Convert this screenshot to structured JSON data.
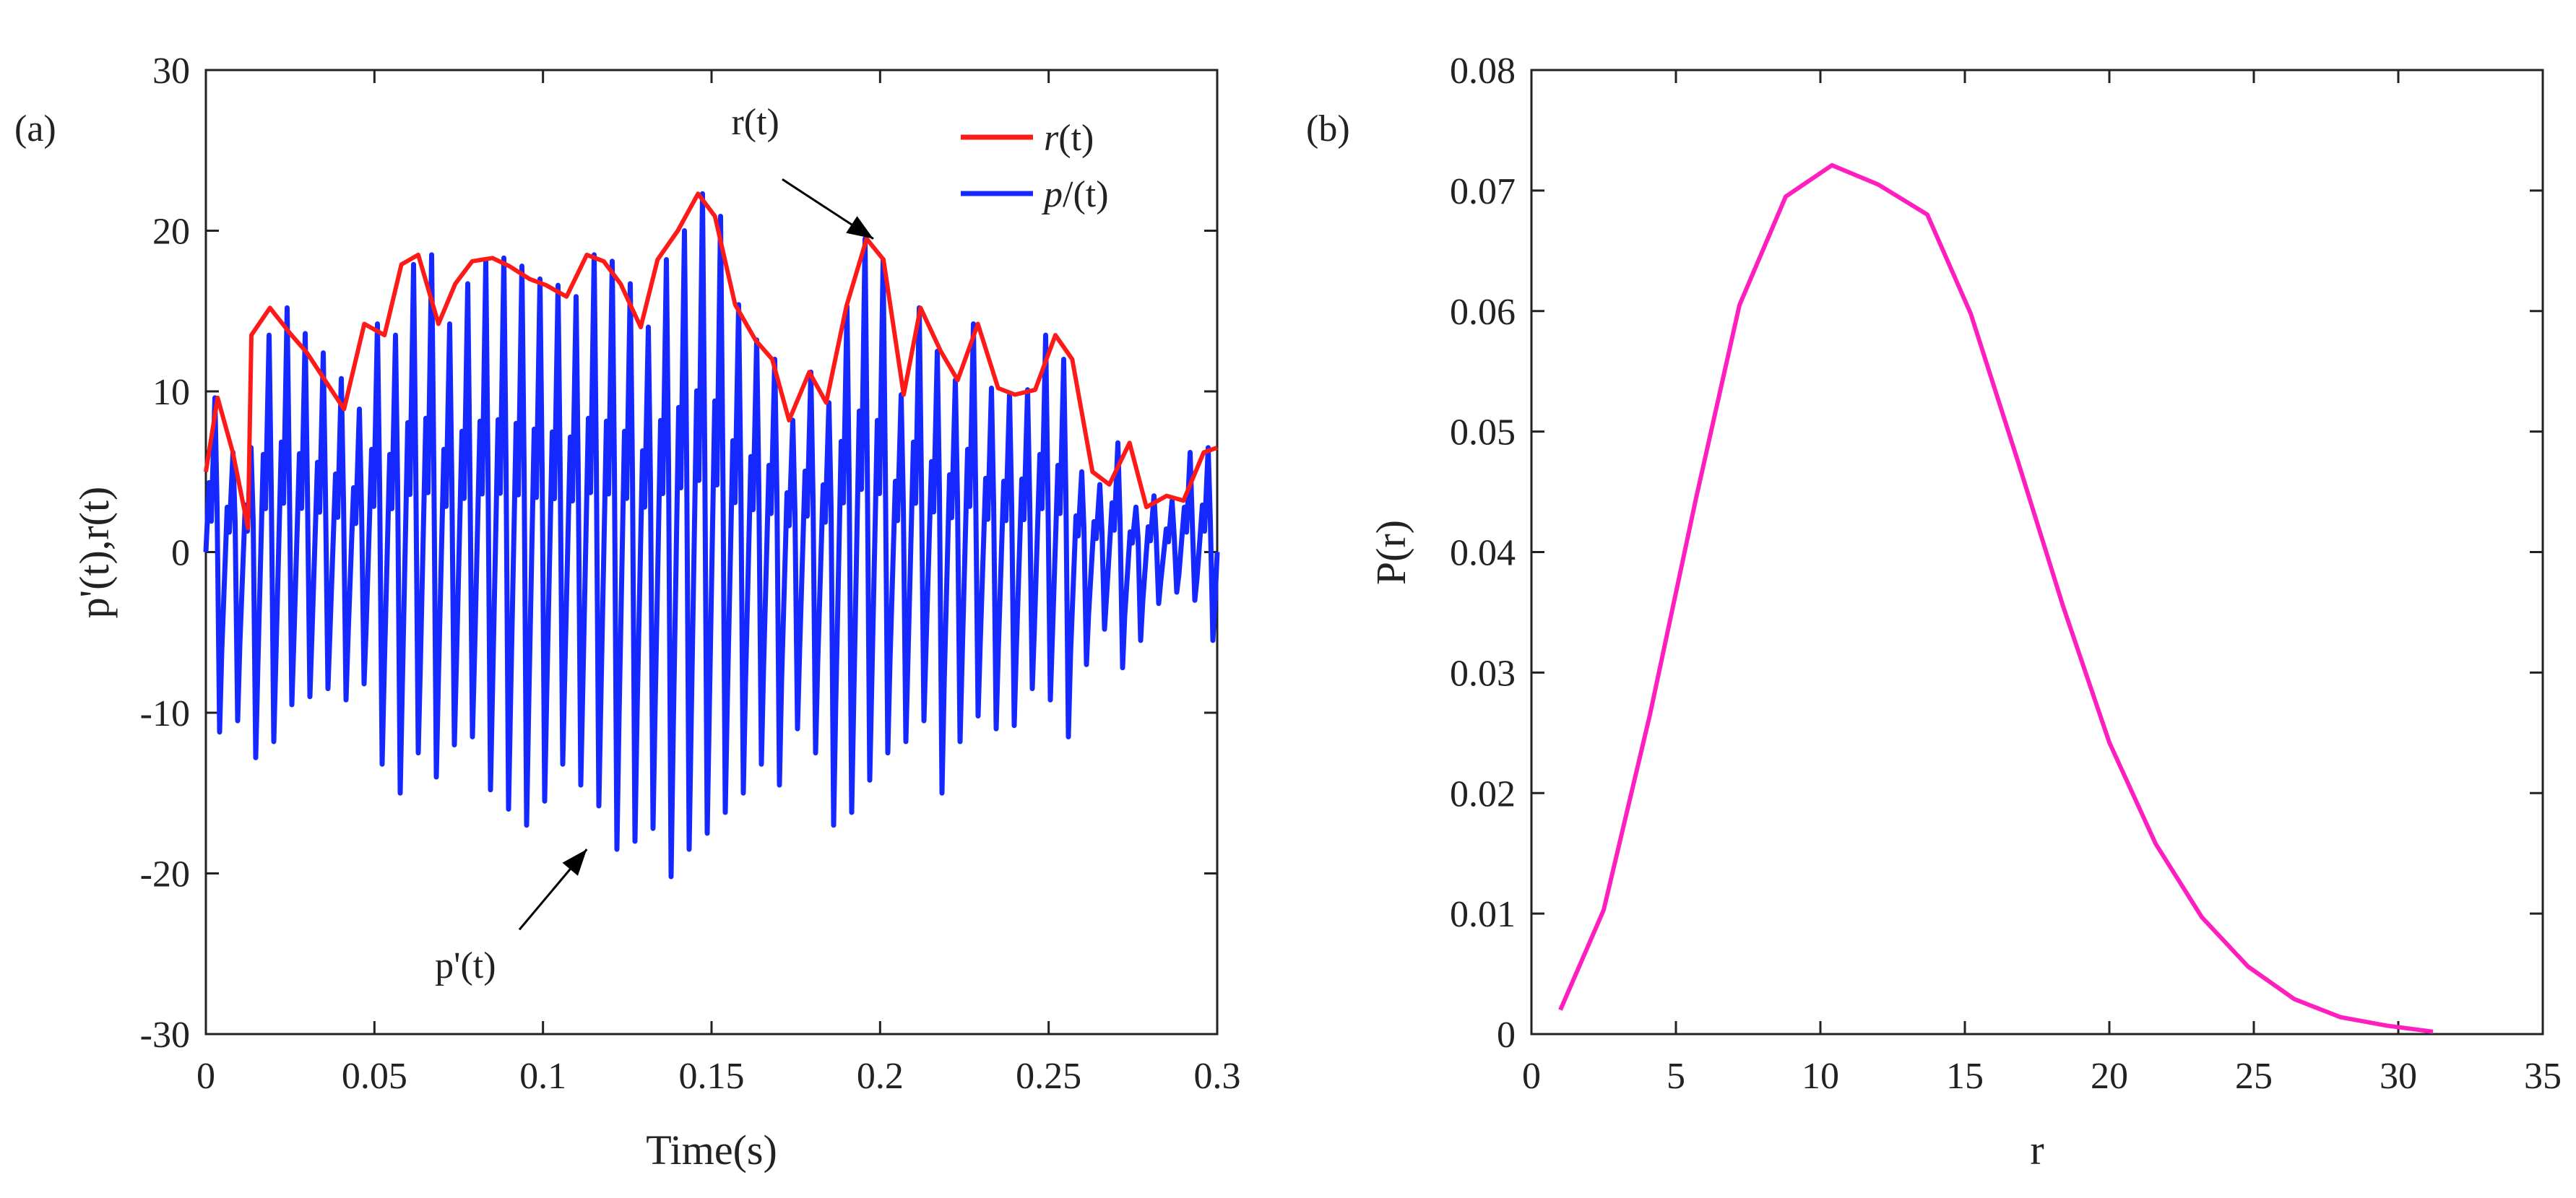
{
  "colors": {
    "r_envelope": "#ff1a1a",
    "p_signal": "#1428ff",
    "pdf_curve": "#ff1fbf",
    "axis": "#222222"
  },
  "chart_data": [
    {
      "type": "line",
      "panel_label": "(a)",
      "xlabel": "Time(s)",
      "ylabel": "p'(t),r(t)",
      "xlim": [
        0,
        0.3
      ],
      "ylim": [
        -30,
        30
      ],
      "xticks": [
        0,
        0.05,
        0.1,
        0.15,
        0.2,
        0.25,
        0.3
      ],
      "xtick_labels": [
        "0",
        "0.05",
        "0.1",
        "0.15",
        "0.2",
        "0.25",
        "0.3"
      ],
      "yticks": [
        -30,
        -20,
        -10,
        0,
        10,
        20,
        30
      ],
      "ytick_labels": [
        "-30",
        "-20",
        "-10",
        "0",
        "10",
        "20",
        "30"
      ],
      "grid": false,
      "legend_position": "top-right",
      "legend": [
        {
          "label_italic": "r",
          "label_rest": "(t)"
        },
        {
          "label_italic": "p",
          "label_rest": "/(t)"
        }
      ],
      "annotations": [
        {
          "text": "r(t)",
          "text_at": [
            0.163,
            26.0
          ],
          "arrow_from": [
            0.171,
            23.2
          ],
          "arrow_to": [
            0.198,
            19.5
          ]
        },
        {
          "text": "p'(t)",
          "text_at": [
            0.077,
            -26.5
          ],
          "arrow_from": [
            0.093,
            -23.5
          ],
          "arrow_to": [
            0.113,
            -18.5
          ]
        }
      ],
      "series": [
        {
          "name": "r(t)",
          "x": [
            0.0,
            0.0035,
            0.008,
            0.0125,
            0.0135,
            0.019,
            0.025,
            0.03,
            0.035,
            0.041,
            0.047,
            0.053,
            0.058,
            0.063,
            0.069,
            0.074,
            0.079,
            0.085,
            0.09,
            0.096,
            0.101,
            0.107,
            0.113,
            0.118,
            0.123,
            0.129,
            0.134,
            0.14,
            0.146,
            0.151,
            0.157,
            0.163,
            0.168,
            0.173,
            0.179,
            0.184,
            0.19,
            0.196,
            0.201,
            0.207,
            0.212,
            0.218,
            0.223,
            0.229,
            0.235,
            0.24,
            0.246,
            0.252,
            0.257,
            0.263,
            0.268,
            0.274,
            0.279,
            0.285,
            0.29,
            0.296,
            0.3
          ],
          "y": [
            5,
            9.6,
            6.2,
            1.5,
            13.5,
            15.2,
            13.6,
            12.4,
            10.8,
            8.9,
            14.2,
            13.5,
            17.9,
            18.5,
            14.2,
            16.7,
            18.1,
            18.3,
            17.8,
            17.0,
            16.6,
            15.9,
            18.5,
            18.1,
            16.7,
            14.0,
            18.2,
            20.0,
            22.3,
            20.9,
            15.4,
            13.2,
            12.0,
            8.2,
            11.2,
            9.3,
            15.3,
            19.5,
            18.2,
            9.8,
            15.2,
            12.5,
            10.7,
            14.2,
            10.2,
            9.8,
            10.1,
            13.5,
            12.0,
            5.0,
            4.2,
            6.8,
            2.8,
            3.5,
            3.2,
            6.2,
            6.5
          ]
        },
        {
          "name": "p'(t)",
          "peaks": [
            9.6,
            6.2,
            6.5,
            13.5,
            15.2,
            13.6,
            12.4,
            10.8,
            8.9,
            14.2,
            13.5,
            17.9,
            18.5,
            14.2,
            16.7,
            18.1,
            18.3,
            17.8,
            17.0,
            16.6,
            15.9,
            18.5,
            18.1,
            16.7,
            14.0,
            18.2,
            20.0,
            22.3,
            20.9,
            15.4,
            13.2,
            12.0,
            8.2,
            11.2,
            9.3,
            15.3,
            19.5,
            18.2,
            9.8,
            15.2,
            12.5,
            10.7,
            14.2,
            10.2,
            9.8,
            10.1,
            13.5,
            12.0,
            5.0,
            4.2,
            6.8,
            2.8,
            3.5,
            3.2,
            6.2,
            6.5
          ],
          "troughs": [
            -11.2,
            -10.5,
            -12.8,
            -11.8,
            -9.5,
            -9.0,
            -8.5,
            -9.2,
            -8.2,
            -13.2,
            -15.0,
            -12.5,
            -14.0,
            -12.0,
            -11.5,
            -14.8,
            -16.0,
            -17.0,
            -15.5,
            -13.2,
            -14.5,
            -15.8,
            -18.5,
            -18.0,
            -17.2,
            -20.2,
            -18.5,
            -17.5,
            -16.2,
            -15.0,
            -13.2,
            -14.5,
            -11.0,
            -12.5,
            -17.0,
            -16.2,
            -14.2,
            -12.5,
            -11.8,
            -10.5,
            -15.0,
            -11.8,
            -10.2,
            -11.0,
            -10.8,
            -8.5,
            -9.2,
            -11.5,
            -7.0,
            -4.8,
            -7.2,
            -5.5,
            -3.2,
            -2.5,
            -3.0,
            -5.5
          ]
        }
      ]
    },
    {
      "type": "line",
      "panel_label": "(b)",
      "xlabel": "r",
      "ylabel": "P(r)",
      "xlim": [
        0,
        35
      ],
      "ylim": [
        0,
        0.08
      ],
      "xticks": [
        0,
        5,
        10,
        15,
        20,
        25,
        30,
        35
      ],
      "xtick_labels": [
        "0",
        "5",
        "10",
        "15",
        "20",
        "25",
        "30",
        "35"
      ],
      "yticks": [
        0,
        0.01,
        0.02,
        0.03,
        0.04,
        0.05,
        0.06,
        0.07,
        0.08
      ],
      "ytick_labels": [
        "0",
        "0.01",
        "0.02",
        "0.03",
        "0.04",
        "0.05",
        "0.06",
        "0.07",
        "0.08"
      ],
      "grid": false,
      "series": [
        {
          "name": "P(r)",
          "x": [
            1.0,
            2.5,
            4.1,
            5.7,
            7.2,
            8.8,
            10.4,
            12.0,
            13.7,
            15.2,
            16.8,
            18.4,
            20.0,
            21.6,
            23.2,
            24.8,
            26.4,
            28.0,
            29.6,
            31.2
          ],
          "y": [
            0.002,
            0.0103,
            0.0265,
            0.0445,
            0.0605,
            0.0695,
            0.0721,
            0.0705,
            0.068,
            0.0598,
            0.0478,
            0.0355,
            0.0242,
            0.0158,
            0.0097,
            0.0056,
            0.0029,
            0.0014,
            0.0007,
            0.0002
          ]
        }
      ]
    }
  ]
}
